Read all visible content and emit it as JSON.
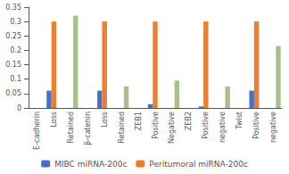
{
  "chart_data": {
    "type": "bar",
    "categories": [
      "E-cadherin",
      "Loss",
      "Retained",
      "β-catenin",
      "Loss",
      "Retained",
      "ZEB1",
      "Positive",
      "Negative",
      "ZEB2",
      "Positive",
      "negative",
      "Twist",
      "Positive",
      "negative"
    ],
    "series": [
      {
        "name": "MIBC miRNA-200c",
        "color": "#4472C4",
        "values": [
          0.0,
          0.06,
          0.0,
          0.0,
          0.06,
          0.0,
          0.0,
          0.013,
          0.0,
          0.0,
          0.005,
          0.0,
          0.0,
          0.06,
          0.0
        ]
      },
      {
        "name": "Peritumoral miRNA-200c",
        "color": "#ED7D31",
        "values": [
          0.0,
          0.3,
          0.0,
          0.0,
          0.3,
          0.0,
          0.0,
          0.3,
          0.0,
          0.0,
          0.3,
          0.0,
          0.0,
          0.3,
          0.0
        ]
      },
      {
        "color": "#A9C08C",
        "values": [
          0.0,
          0.0,
          0.32,
          0.0,
          0.0,
          0.075,
          0.0,
          0.0,
          0.095,
          0.0,
          0.0,
          0.075,
          0.0,
          0.0,
          0.215
        ]
      }
    ],
    "ylim": [
      0,
      0.35
    ],
    "yticks": [
      0,
      0.05,
      0.1,
      0.15,
      0.2,
      0.25,
      0.3,
      0.35
    ],
    "grid": false,
    "legend": "bottom"
  }
}
